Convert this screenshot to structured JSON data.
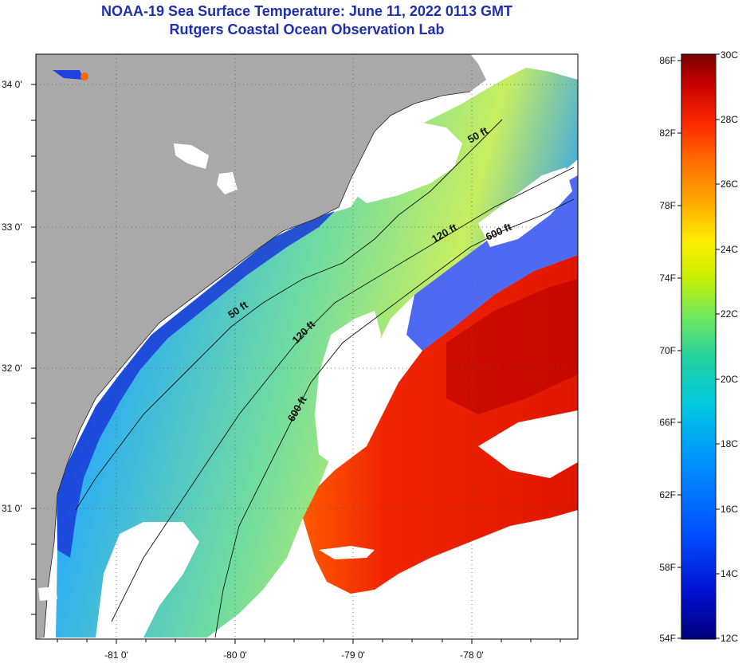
{
  "title_line1": "NOAA-19 Sea Surface Temperature:  June 11, 2022 0113 GMT",
  "title_line2": "Rutgers Coastal Ocean Observation Lab",
  "longitude_labels": [
    "-81 0'",
    "-80 0'",
    "-79 0'",
    "-78 0'"
  ],
  "latitude_labels": [
    "34 0'",
    "33 0'",
    "32 0'",
    "31 0'"
  ],
  "depth_contour_labels": {
    "c50_south": "50 ft",
    "c50_north": "50 ft",
    "c120_south": "120 ft",
    "c120_north": "120 ft",
    "c600_south": "600 ft",
    "c600_north": "600 ft"
  },
  "colorbar": {
    "fahrenheit_labels": [
      "86F",
      "82F",
      "78F",
      "74F",
      "70F",
      "66F",
      "62F",
      "58F",
      "54F"
    ],
    "celsius_labels": [
      "30C",
      "28C",
      "26C",
      "24C",
      "22C",
      "20C",
      "18C",
      "16C",
      "14C",
      "12C"
    ],
    "colors": [
      "#7a0000",
      "#c40000",
      "#ff2a00",
      "#ff6a00",
      "#ffb000",
      "#ffee00",
      "#c8f000",
      "#6ee860",
      "#22d0a0",
      "#00c8e0",
      "#0090ff",
      "#0050ff",
      "#0010d0",
      "#00007a"
    ]
  },
  "colors": {
    "land": "#a9a9a9",
    "cloud": "#ffffff",
    "warm_water": "#ee2200",
    "title": "#1f2fb0"
  }
}
